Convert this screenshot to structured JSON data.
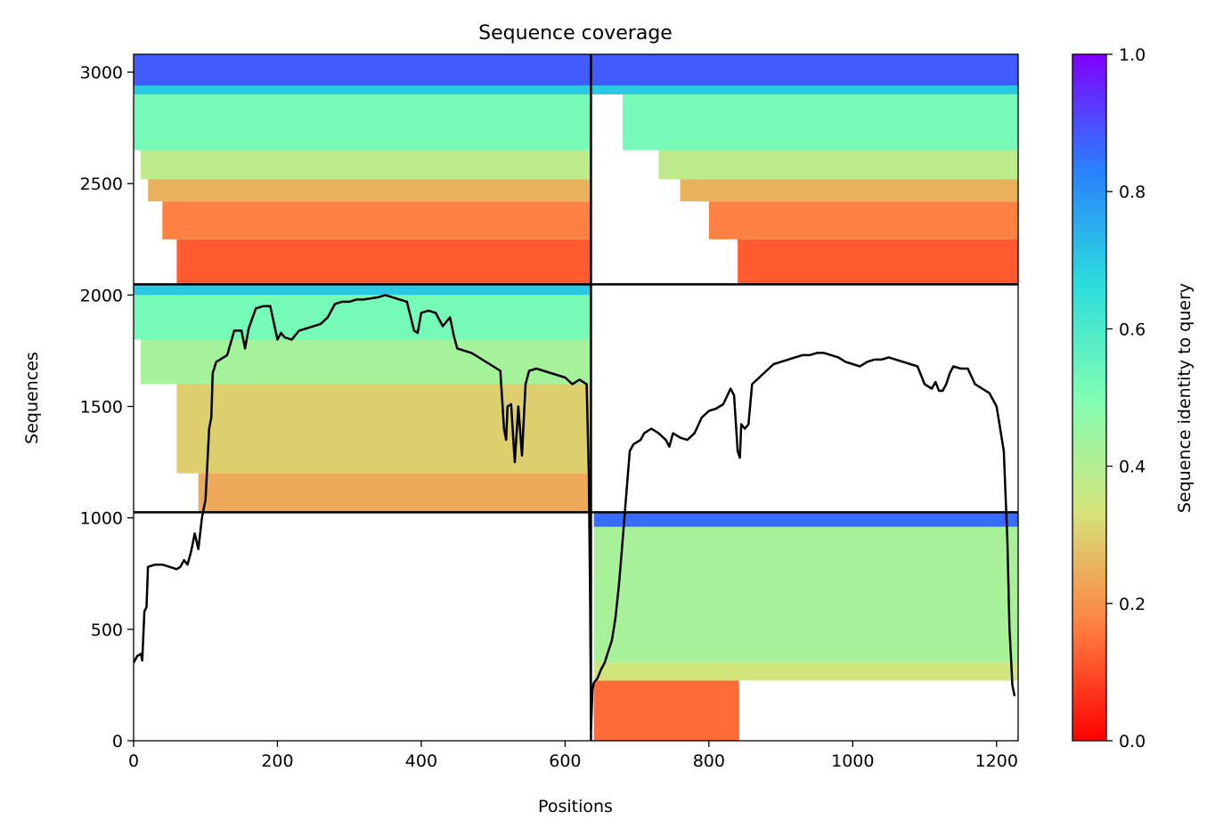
{
  "chart_data": {
    "type": "heatmap",
    "title": "Sequence coverage",
    "xlabel": "Positions",
    "ylabel": "Sequences",
    "xlim": [
      0,
      1230
    ],
    "ylim": [
      0,
      3080
    ],
    "xticks": [
      "0",
      "200",
      "400",
      "600",
      "800",
      "1000",
      "1200"
    ],
    "yticks": [
      "0",
      "500",
      "1000",
      "1500",
      "2000",
      "2500",
      "3000"
    ],
    "colorbar": {
      "label": "Sequence identity to query",
      "range": [
        0,
        1
      ],
      "ticks": [
        "0.0",
        "0.2",
        "0.4",
        "0.6",
        "0.8",
        "1.0"
      ],
      "colormap": "rainbow_r",
      "colors": [
        "#ff0000",
        "#ff7f40",
        "#d5e37a",
        "#80feb3",
        "#2adcdc",
        "#2a7fff",
        "#8000ff"
      ]
    },
    "grid": false,
    "legend": "none",
    "separators": {
      "x": [
        636
      ],
      "y": [
        1025,
        2048
      ]
    },
    "blocks": [
      {
        "name": "block-top-left",
        "x_from": 0,
        "x_to": 636,
        "y_from": 2048,
        "y_to": 3080,
        "bands": [
          {
            "y_from": 2048,
            "y_to": 2250,
            "identity": 0.12,
            "x_start": 60,
            "x_end": 636
          },
          {
            "y_from": 2250,
            "y_to": 2420,
            "identity": 0.17,
            "x_start": 40,
            "x_end": 636
          },
          {
            "y_from": 2420,
            "y_to": 2520,
            "identity": 0.25,
            "x_start": 20,
            "x_end": 636
          },
          {
            "y_from": 2520,
            "y_to": 2650,
            "identity": 0.38,
            "x_start": 10,
            "x_end": 636
          },
          {
            "y_from": 2650,
            "y_to": 2900,
            "identity": 0.52,
            "x_start": 0,
            "x_end": 636
          },
          {
            "y_from": 2900,
            "y_to": 2940,
            "identity": 0.7,
            "x_start": 0,
            "x_end": 636
          },
          {
            "y_from": 2940,
            "y_to": 3080,
            "identity": 0.88,
            "x_start": 0,
            "x_end": 636
          }
        ]
      },
      {
        "name": "block-top-right",
        "x_from": 636,
        "x_to": 1230,
        "y_from": 2048,
        "y_to": 3080,
        "bands": [
          {
            "y_from": 2048,
            "y_to": 2250,
            "identity": 0.12,
            "x_start": 840,
            "x_end": 1230
          },
          {
            "y_from": 2250,
            "y_to": 2420,
            "identity": 0.17,
            "x_start": 800,
            "x_end": 1230
          },
          {
            "y_from": 2420,
            "y_to": 2520,
            "identity": 0.25,
            "x_start": 760,
            "x_end": 1230
          },
          {
            "y_from": 2520,
            "y_to": 2650,
            "identity": 0.38,
            "x_start": 730,
            "x_end": 1230
          },
          {
            "y_from": 2650,
            "y_to": 2900,
            "identity": 0.52,
            "x_start": 680,
            "x_end": 1230
          },
          {
            "y_from": 2900,
            "y_to": 2940,
            "identity": 0.7,
            "x_start": 636,
            "x_end": 1230
          },
          {
            "y_from": 2940,
            "y_to": 3080,
            "identity": 0.88,
            "x_start": 636,
            "x_end": 1230
          }
        ]
      },
      {
        "name": "block-middle-left",
        "x_from": 0,
        "x_to": 636,
        "y_from": 1025,
        "y_to": 2048,
        "bands": [
          {
            "y_from": 1025,
            "y_to": 1200,
            "identity": 0.24,
            "x_start": 90,
            "x_end": 636
          },
          {
            "y_from": 1200,
            "y_to": 1600,
            "identity": 0.3,
            "x_start": 60,
            "x_end": 636
          },
          {
            "y_from": 1600,
            "y_to": 1800,
            "identity": 0.43,
            "x_start": 10,
            "x_end": 636
          },
          {
            "y_from": 1800,
            "y_to": 2000,
            "identity": 0.52,
            "x_start": 0,
            "x_end": 636
          },
          {
            "y_from": 2000,
            "y_to": 2048,
            "identity": 0.7,
            "x_start": 0,
            "x_end": 636
          }
        ]
      },
      {
        "name": "block-bottom-right",
        "x_from": 636,
        "x_to": 1230,
        "y_from": 0,
        "y_to": 1025,
        "bands": [
          {
            "y_from": 0,
            "y_to": 270,
            "identity": 0.14,
            "x_start": 640,
            "x_end": 842
          },
          {
            "y_from": 270,
            "y_to": 350,
            "identity": 0.34,
            "x_start": 640,
            "x_end": 1230
          },
          {
            "y_from": 350,
            "y_to": 960,
            "identity": 0.42,
            "x_start": 640,
            "x_end": 1230
          },
          {
            "y_from": 960,
            "y_to": 1025,
            "identity": 0.86,
            "x_start": 640,
            "x_end": 1230
          }
        ]
      }
    ],
    "coverage_line": {
      "x": [
        0,
        5,
        10,
        12,
        15,
        18,
        20,
        30,
        40,
        50,
        60,
        65,
        70,
        75,
        80,
        85,
        90,
        95,
        98,
        100,
        105,
        108,
        110,
        115,
        120,
        130,
        140,
        150,
        155,
        160,
        170,
        180,
        190,
        200,
        205,
        210,
        220,
        230,
        240,
        250,
        260,
        270,
        280,
        290,
        300,
        310,
        320,
        340,
        350,
        360,
        370,
        380,
        390,
        395,
        400,
        410,
        420,
        430,
        440,
        445,
        450,
        460,
        470,
        480,
        490,
        500,
        510,
        515,
        518,
        520,
        525,
        530,
        535,
        540,
        545,
        550,
        560,
        570,
        580,
        590,
        600,
        610,
        620,
        625,
        630,
        633,
        635,
        636,
        638,
        640,
        645,
        650,
        655,
        660,
        665,
        670,
        675,
        680,
        685,
        690,
        695,
        700,
        705,
        710,
        720,
        730,
        740,
        745,
        750,
        760,
        770,
        780,
        790,
        800,
        810,
        820,
        830,
        835,
        840,
        843,
        845,
        850,
        855,
        860,
        870,
        880,
        890,
        900,
        910,
        920,
        930,
        940,
        950,
        960,
        970,
        980,
        990,
        1000,
        1010,
        1020,
        1030,
        1040,
        1050,
        1060,
        1070,
        1080,
        1090,
        1100,
        1110,
        1115,
        1120,
        1125,
        1130,
        1135,
        1140,
        1150,
        1160,
        1170,
        1180,
        1190,
        1200,
        1210,
        1215,
        1218,
        1220,
        1222,
        1225,
        1228,
        1230
      ],
      "y": [
        350,
        380,
        390,
        360,
        580,
        600,
        780,
        790,
        790,
        780,
        770,
        780,
        810,
        790,
        850,
        930,
        860,
        1000,
        1050,
        1080,
        1400,
        1450,
        1650,
        1700,
        1710,
        1730,
        1840,
        1840,
        1760,
        1850,
        1940,
        1950,
        1950,
        1800,
        1830,
        1810,
        1800,
        1840,
        1850,
        1860,
        1870,
        1900,
        1960,
        1970,
        1970,
        1980,
        1980,
        1990,
        2000,
        1990,
        1980,
        1970,
        1840,
        1830,
        1920,
        1930,
        1920,
        1860,
        1900,
        1820,
        1760,
        1750,
        1740,
        1720,
        1700,
        1680,
        1660,
        1400,
        1350,
        1500,
        1510,
        1250,
        1500,
        1280,
        1600,
        1660,
        1670,
        1660,
        1650,
        1640,
        1630,
        1600,
        1620,
        1610,
        1600,
        1200,
        600,
        50,
        230,
        260,
        280,
        320,
        350,
        400,
        450,
        550,
        700,
        900,
        1100,
        1300,
        1330,
        1340,
        1350,
        1380,
        1400,
        1380,
        1350,
        1320,
        1380,
        1360,
        1350,
        1380,
        1450,
        1480,
        1490,
        1510,
        1580,
        1550,
        1300,
        1270,
        1420,
        1400,
        1420,
        1600,
        1630,
        1660,
        1690,
        1700,
        1710,
        1720,
        1730,
        1730,
        1740,
        1740,
        1730,
        1720,
        1700,
        1690,
        1680,
        1700,
        1710,
        1710,
        1720,
        1710,
        1700,
        1690,
        1680,
        1600,
        1580,
        1610,
        1570,
        1570,
        1600,
        1650,
        1680,
        1670,
        1670,
        1600,
        1580,
        1560,
        1500,
        1300,
        900,
        500,
        380,
        250,
        200
      ]
    }
  }
}
